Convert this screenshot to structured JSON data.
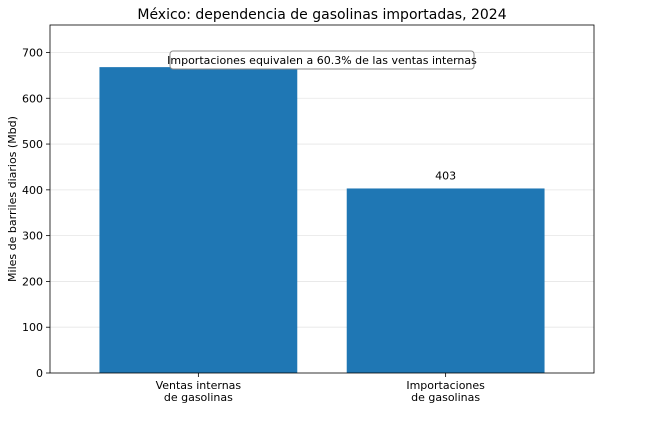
{
  "chart_data": {
    "type": "bar",
    "title": "México: dependencia de gasolinas importadas, 2024",
    "xlabel": "",
    "ylabel": "Miles de barriles diarios (Mbd)",
    "categories": [
      [
        "Ventas internas",
        "de gasolinas"
      ],
      [
        "Importaciones",
        "de gasolinas"
      ]
    ],
    "values": [
      668,
      403
    ],
    "data_labels": [
      null,
      "403"
    ],
    "bar_color": "#1f77b4",
    "ylim": [
      0,
      760
    ],
    "yticks": [
      0,
      100,
      200,
      300,
      400,
      500,
      600,
      700
    ],
    "grid": "y",
    "annotation": "Importaciones equivalen a 60.3% de las ventas internas"
  }
}
